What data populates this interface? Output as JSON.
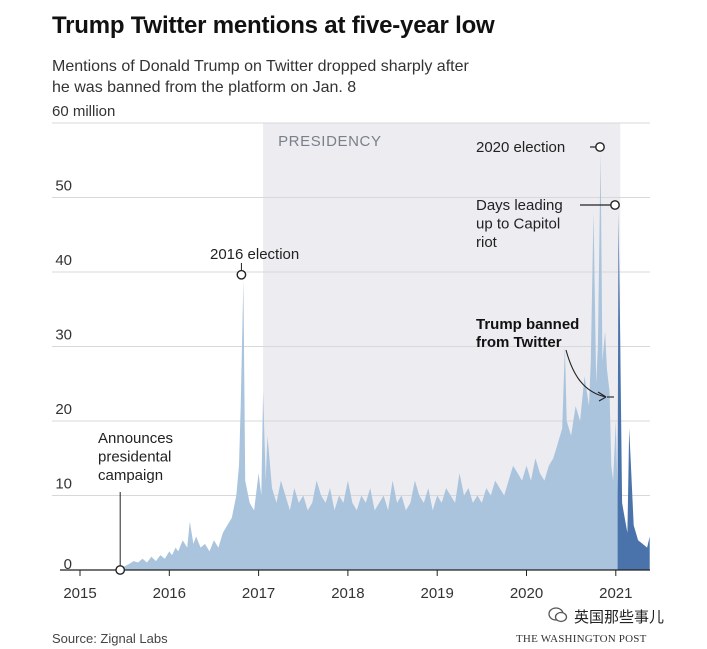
{
  "header": {
    "title": "Trump Twitter mentions at five-year low",
    "subtitle_line1": "Mentions of Donald Trump on Twitter dropped sharply after",
    "subtitle_line2": "he was banned from the platform on Jan. 8"
  },
  "footer": {
    "source": "Source: Zignal Labs",
    "brand": "THE WASHINGTON POST",
    "watermark": "英国那些事儿"
  },
  "colors": {
    "area": "#a9c4dc",
    "area_after_ban": "#4a73ab",
    "presidency_band": "#ececf1",
    "grid": "#d8d8d8",
    "annotation": "#222222"
  },
  "chart_data": {
    "type": "area",
    "title": "Trump Twitter mentions at five-year low",
    "subtitle": "Mentions of Donald Trump on Twitter dropped sharply after he was banned from the platform on Jan. 8",
    "xlabel": "",
    "ylabel": "",
    "xlim": [
      2015.0,
      2021.4
    ],
    "ylim": [
      0,
      60
    ],
    "y_unit_label": "60 million",
    "yticks": [
      0,
      10,
      20,
      30,
      40,
      50,
      60
    ],
    "ytick_labels": [
      "0",
      "10",
      "20",
      "30",
      "40",
      "50",
      "60 million"
    ],
    "xticks": [
      2015,
      2016,
      2017,
      2018,
      2019,
      2020,
      2021
    ],
    "xtick_labels": [
      "2015",
      "2016",
      "2017",
      "2018",
      "2019",
      "2020",
      "2021"
    ],
    "grid": true,
    "shaded_region": {
      "label": "PRESIDENCY",
      "x_start": 2017.05,
      "x_end": 2021.05
    },
    "series": [
      {
        "x": [
          2015.45,
          2015.5,
          2015.55,
          2015.6,
          2015.65,
          2015.7,
          2015.75,
          2015.8,
          2015.85,
          2015.9,
          2015.95,
          2016.0,
          2016.03,
          2016.07,
          2016.1,
          2016.15,
          2016.2,
          2016.23,
          2016.27,
          2016.3,
          2016.35,
          2016.4,
          2016.45,
          2016.5,
          2016.55,
          2016.6,
          2016.65,
          2016.7,
          2016.75,
          2016.78,
          2016.8,
          2016.83,
          2016.85,
          2016.9,
          2016.95,
          2017.0,
          2017.03,
          2017.05,
          2017.08,
          2017.1,
          2017.15,
          2017.2,
          2017.25,
          2017.3,
          2017.35,
          2017.4,
          2017.45,
          2017.5,
          2017.55,
          2017.6,
          2017.65,
          2017.7,
          2017.75,
          2017.8,
          2017.85,
          2017.9,
          2017.95,
          2018.0,
          2018.05,
          2018.1,
          2018.15,
          2018.2,
          2018.25,
          2018.3,
          2018.35,
          2018.4,
          2018.45,
          2018.5,
          2018.55,
          2018.6,
          2018.65,
          2018.7,
          2018.75,
          2018.8,
          2018.85,
          2018.9,
          2018.95,
          2019.0,
          2019.05,
          2019.1,
          2019.15,
          2019.2,
          2019.25,
          2019.3,
          2019.35,
          2019.4,
          2019.45,
          2019.5,
          2019.55,
          2019.6,
          2019.65,
          2019.7,
          2019.75,
          2019.8,
          2019.85,
          2019.9,
          2019.95,
          2020.0,
          2020.05,
          2020.1,
          2020.15,
          2020.2,
          2020.25,
          2020.3,
          2020.35,
          2020.4,
          2020.43,
          2020.45,
          2020.5,
          2020.55,
          2020.6,
          2020.65,
          2020.7,
          2020.72,
          2020.75,
          2020.78,
          2020.8,
          2020.83,
          2020.85,
          2020.88,
          2020.9,
          2020.93,
          2020.95,
          2020.97,
          2021.0,
          2021.02,
          2021.03,
          2021.05,
          2021.07,
          2021.1,
          2021.13,
          2021.15,
          2021.2,
          2021.25,
          2021.3,
          2021.35,
          2021.38
        ],
        "values": [
          0.3,
          0.5,
          0.8,
          1.2,
          1.0,
          1.5,
          1.0,
          1.8,
          1.2,
          2.0,
          1.5,
          2.5,
          2.0,
          3.0,
          2.5,
          4.0,
          3.0,
          6.5,
          3.5,
          4.5,
          3.0,
          3.5,
          2.5,
          4.0,
          3.0,
          5.0,
          6.0,
          7.0,
          10.0,
          14.0,
          22.0,
          39.0,
          12.0,
          9.0,
          8.0,
          13.0,
          10.0,
          24.0,
          12.0,
          18.0,
          11.0,
          9.0,
          12.0,
          10.0,
          8.0,
          11.0,
          9.0,
          10.0,
          8.0,
          9.0,
          12.0,
          10.0,
          9.0,
          11.0,
          8.0,
          10.0,
          9.0,
          12.0,
          9.0,
          8.0,
          10.0,
          9.0,
          11.0,
          8.0,
          9.0,
          10.0,
          8.0,
          12.0,
          9.0,
          10.0,
          8.0,
          9.0,
          12.0,
          10.0,
          9.0,
          11.0,
          8.0,
          10.0,
          9.0,
          11.0,
          10.0,
          9.0,
          13.0,
          10.0,
          11.0,
          9.0,
          10.0,
          9.0,
          11.0,
          10.0,
          12.0,
          11.0,
          10.0,
          12.0,
          14.0,
          13.0,
          12.0,
          14.0,
          12.0,
          15.0,
          13.0,
          12.0,
          14.0,
          15.0,
          17.0,
          19.0,
          30.0,
          20.0,
          18.0,
          22.0,
          20.0,
          26.0,
          22.0,
          28.0,
          48.0,
          25.0,
          30.0,
          56.0,
          28.0,
          32.0,
          27.0,
          24.0,
          14.0,
          12.0,
          20.0,
          10.0,
          48.0,
          30.0,
          9.0,
          7.0,
          5.0,
          19.0,
          6.0,
          4.0,
          3.5,
          3.0,
          4.5
        ]
      }
    ],
    "ban_date": 2021.02,
    "annotations": [
      {
        "label": "Announces presidental campaign",
        "lines": [
          "Announces",
          "presidental",
          "campaign"
        ],
        "x": 2015.45,
        "y": 0
      },
      {
        "label": "2016 election",
        "lines": [
          "2016 election"
        ],
        "x": 2016.83,
        "y": 39.5
      },
      {
        "label": "2020 election",
        "lines": [
          "2020 election"
        ],
        "x": 2020.83,
        "y": 57
      },
      {
        "label": "Days leading up to Capitol riot",
        "lines": [
          "Days leading",
          "up to Capitol",
          "riot"
        ],
        "x": 2021.0,
        "y": 49
      },
      {
        "label": "Trump banned from Twitter",
        "lines": [
          "Trump banned",
          "from Twitter"
        ],
        "x": 2021.0,
        "y": 23
      }
    ]
  }
}
